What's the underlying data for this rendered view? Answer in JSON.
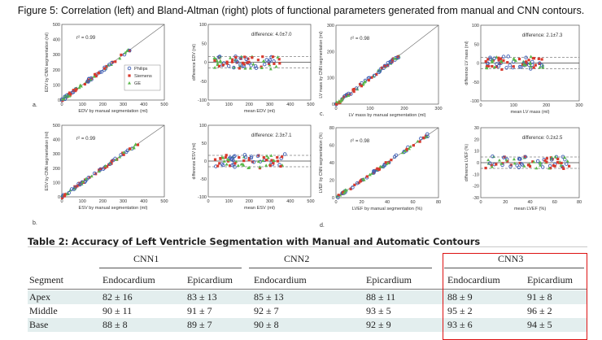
{
  "figure": {
    "caption": "Figure 5: Correlation (left) and Bland-Altman (right) plots of functional parameters generated from manual and CNN contours."
  },
  "panels": [
    {
      "letter": "a.",
      "scatter": {
        "ylabel": "EDV by CNN segmentation (ml)",
        "xlabel": "EDV by manual segmentation (ml)",
        "xticks": [
          "0",
          "100",
          "200",
          "300",
          "400",
          "500"
        ],
        "yticks": [
          "0",
          "100",
          "200",
          "300",
          "400",
          "500"
        ],
        "annotation": "r² = 0.99",
        "legend": [
          "Philips",
          "Siemens",
          "GE"
        ]
      },
      "ba": {
        "ylabel": "difference EDV (ml)",
        "xlabel": "mean EDV (ml)",
        "xticks": [
          "0",
          "100",
          "200",
          "300",
          "400",
          "500"
        ],
        "yticks": [
          "100",
          "50",
          "0",
          "-50",
          "-100"
        ],
        "annotation": "difference: 4.0±7.0"
      }
    },
    {
      "letter": "b.",
      "scatter": {
        "ylabel": "ESV by CNN segmentation (ml)",
        "xlabel": "ESV by manual segmentation (ml)",
        "xticks": [
          "0",
          "100",
          "200",
          "300",
          "400",
          "500"
        ],
        "yticks": [
          "0",
          "100",
          "200",
          "300",
          "400",
          "500"
        ],
        "annotation": "r² = 0.99"
      },
      "ba": {
        "ylabel": "difference ESV (ml)",
        "xlabel": "mean ESV (ml)",
        "xticks": [
          "0",
          "100",
          "200",
          "300",
          "400",
          "500"
        ],
        "yticks": [
          "100",
          "50",
          "0",
          "-50",
          "-100"
        ],
        "annotation": "difference: 2.3±7.1"
      }
    },
    {
      "letter": "c.",
      "scatter": {
        "ylabel": "LV mass by CNN segmentation (ml)",
        "xlabel": "LV mass by manual segmentation (ml)",
        "xticks": [
          "0",
          "100",
          "200",
          "300"
        ],
        "yticks": [
          "0",
          "100",
          "200",
          "300"
        ],
        "annotation": "r² = 0.98"
      },
      "ba": {
        "ylabel": "difference LV mass (ml)",
        "xlabel": "mean LV mass (ml)",
        "xticks": [
          "0",
          "100",
          "200",
          "300"
        ],
        "yticks": [
          "100",
          "50",
          "0",
          "-50",
          "-100"
        ],
        "annotation": "difference: 2.1±7.3"
      }
    },
    {
      "letter": "d.",
      "scatter": {
        "ylabel": "LVEF by CNN segmentation (%)",
        "xlabel": "LVEF by manual segmentation (%)",
        "xticks": [
          "0",
          "20",
          "40",
          "60",
          "80"
        ],
        "yticks": [
          "0",
          "20",
          "40",
          "60",
          "80"
        ],
        "annotation": "r² = 0.98"
      },
      "ba": {
        "ylabel": "difference LVEF (%)",
        "xlabel": "mean LVEF (%)",
        "xticks": [
          "0",
          "20",
          "40",
          "60",
          "80"
        ],
        "yticks": [
          "30",
          "20",
          "10",
          "0",
          "-10",
          "-20",
          "-30"
        ],
        "annotation": "difference: 0.2±2.5"
      }
    }
  ],
  "colors": {
    "philips": "#3f5fb5",
    "siemens": "#d83a2e",
    "ge": "#59b849",
    "highlight": "#d11111",
    "row_shade": "#e3eeee"
  },
  "table": {
    "caption": "Table 2: Accuracy of Left Ventricle Segmentation with Manual and Automatic Contours",
    "groups": [
      "CNN1",
      "CNN2",
      "CNN3"
    ],
    "columns": [
      "Segment",
      "Endocardium",
      "Epicardium",
      "Endocardium",
      "Epicardium",
      "Endocardium",
      "Epicardium"
    ],
    "rows": [
      [
        "Apex",
        "82 ± 16",
        "83 ± 13",
        "85 ± 13",
        "88 ± 11",
        "88 ± 9",
        "91 ± 8"
      ],
      [
        "Middle",
        "90 ± 11",
        "91 ± 7",
        "92 ± 7",
        "93 ± 5",
        "95 ± 2",
        "96 ± 2"
      ],
      [
        "Base",
        "88 ± 8",
        "89 ± 7",
        "90 ± 8",
        "92 ± 9",
        "93 ± 6",
        "94 ± 5"
      ]
    ]
  }
}
